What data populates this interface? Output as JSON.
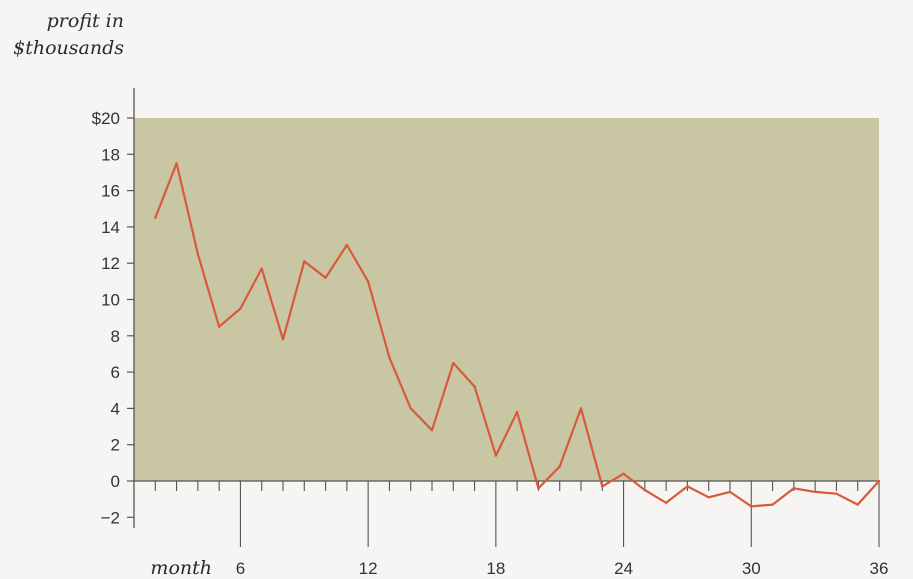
{
  "chart_data": {
    "type": "line",
    "ylabel_line1": "profit in",
    "ylabel_line2": "$thousands",
    "xlabel": "month",
    "xlim": [
      1,
      36
    ],
    "ylim": [
      -2,
      20
    ],
    "yticks": [
      "−2",
      "0",
      "2",
      "4",
      "6",
      "8",
      "10",
      "12",
      "14",
      "16",
      "18",
      "$20"
    ],
    "ytick_values": [
      -2,
      0,
      2,
      4,
      6,
      8,
      10,
      12,
      14,
      16,
      18,
      20
    ],
    "xticks": [
      "6",
      "12",
      "18",
      "24",
      "30",
      "36"
    ],
    "xtick_values": [
      6,
      12,
      18,
      24,
      30,
      36
    ],
    "shaded_band": [
      0,
      20
    ],
    "series": [
      {
        "x": [
          2,
          3,
          4,
          5,
          6,
          7,
          8,
          9,
          10,
          11,
          12,
          13,
          14,
          15,
          16,
          17,
          18,
          19,
          20,
          21,
          22,
          23,
          24,
          25,
          26,
          27,
          28,
          29,
          30,
          31,
          32,
          33,
          34,
          35,
          36
        ],
        "values": [
          14.5,
          17.5,
          12.5,
          8.5,
          9.5,
          11.7,
          7.8,
          12.1,
          11.2,
          13.0,
          11.0,
          6.8,
          4.0,
          2.8,
          6.5,
          5.2,
          1.4,
          3.8,
          -0.4,
          0.8,
          4.0,
          -0.3,
          0.4,
          -0.5,
          -1.2,
          -0.3,
          -0.9,
          -0.6,
          -1.4,
          -1.3,
          -0.4,
          -0.6,
          -0.7,
          -1.3,
          0.0
        ]
      }
    ],
    "colors": {
      "band": "#c8c6a3",
      "line": "#d85a3c",
      "axis": "#555555"
    }
  }
}
